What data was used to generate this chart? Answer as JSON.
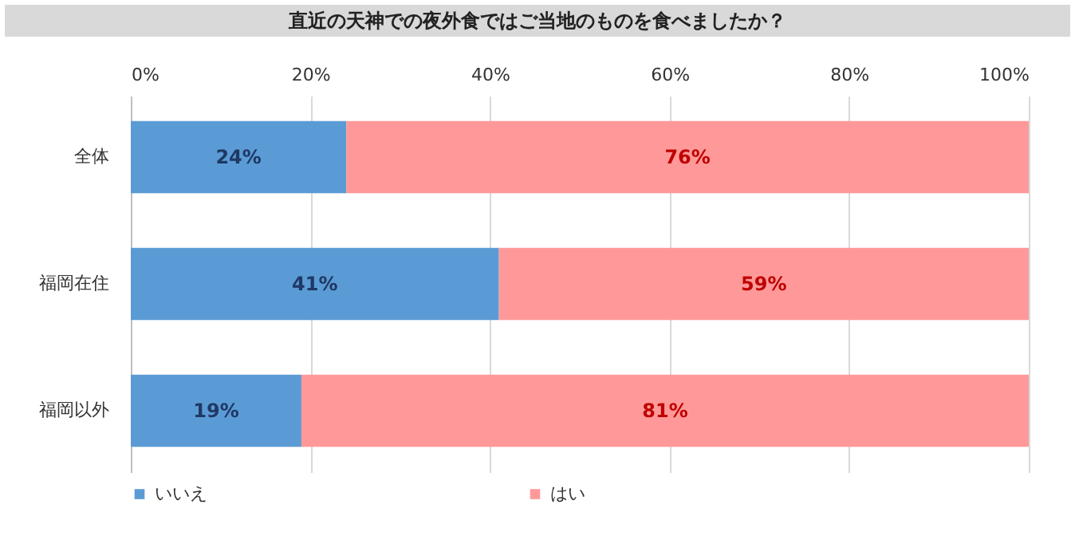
{
  "chart_data": {
    "type": "bar",
    "orientation": "horizontal",
    "stacked": true,
    "title": "直近の天神での夜外食ではご当地のものを食べましたか？",
    "categories": [
      "全体",
      "福岡在住",
      "福岡以外"
    ],
    "series": [
      {
        "name": "いいえ",
        "color": "#5b9bd5",
        "values": [
          24,
          41,
          19
        ],
        "value_labels": [
          "24%",
          "41%",
          "19%"
        ]
      },
      {
        "name": "はい",
        "color": "#ff9999",
        "values": [
          76,
          59,
          81
        ],
        "value_labels": [
          "76%",
          "59%",
          "81%"
        ]
      }
    ],
    "xlim": [
      0,
      100
    ],
    "xticks": [
      {
        "value": 0,
        "label": "0%"
      },
      {
        "value": 20,
        "label": "20%"
      },
      {
        "value": 40,
        "label": "40%"
      },
      {
        "value": 60,
        "label": "60%"
      },
      {
        "value": 80,
        "label": "80%"
      },
      {
        "value": 100,
        "label": "100%"
      }
    ],
    "grid": "x",
    "legend": "bottom"
  }
}
